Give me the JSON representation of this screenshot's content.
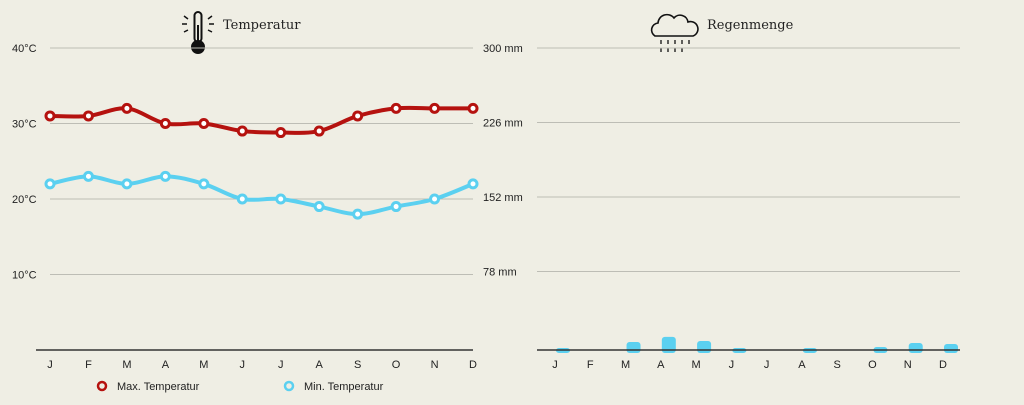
{
  "chart_data": [
    {
      "type": "line",
      "title": "Temperatur",
      "icon": "thermometer-icon",
      "categories": [
        "J",
        "F",
        "M",
        "A",
        "M",
        "J",
        "J",
        "A",
        "S",
        "O",
        "N",
        "D"
      ],
      "ylim": [
        0,
        40
      ],
      "yticks": [
        10,
        20,
        30,
        40
      ],
      "ytick_labels": [
        "10°C",
        "20°C",
        "30°C",
        "40°C"
      ],
      "grid": true,
      "legend_placement": "bottom",
      "series": [
        {
          "name": "Max. Temperatur",
          "color": "#b5120f",
          "values": [
            31,
            31,
            32,
            30,
            30,
            29,
            28.8,
            29,
            31,
            32,
            32,
            32
          ]
        },
        {
          "name": "Min. Temperatur",
          "color": "#5bd0f0",
          "values": [
            22,
            23,
            22,
            23,
            22,
            20,
            20,
            19,
            18,
            19,
            20,
            22
          ]
        }
      ]
    },
    {
      "type": "bar",
      "title": "Regenmenge",
      "icon": "rain-cloud-icon",
      "categories": [
        "J",
        "F",
        "M",
        "A",
        "M",
        "J",
        "J",
        "A",
        "S",
        "O",
        "N",
        "D"
      ],
      "ylim": [
        0,
        300
      ],
      "yticks": [
        78,
        152,
        226,
        300
      ],
      "ytick_labels": [
        "78 mm",
        "152 mm",
        "226 mm",
        "300 mm"
      ],
      "grid": true,
      "color": "#5bd0f0",
      "values": [
        1,
        0,
        8,
        13,
        9,
        1,
        0,
        1,
        0,
        3,
        7,
        6
      ]
    }
  ]
}
